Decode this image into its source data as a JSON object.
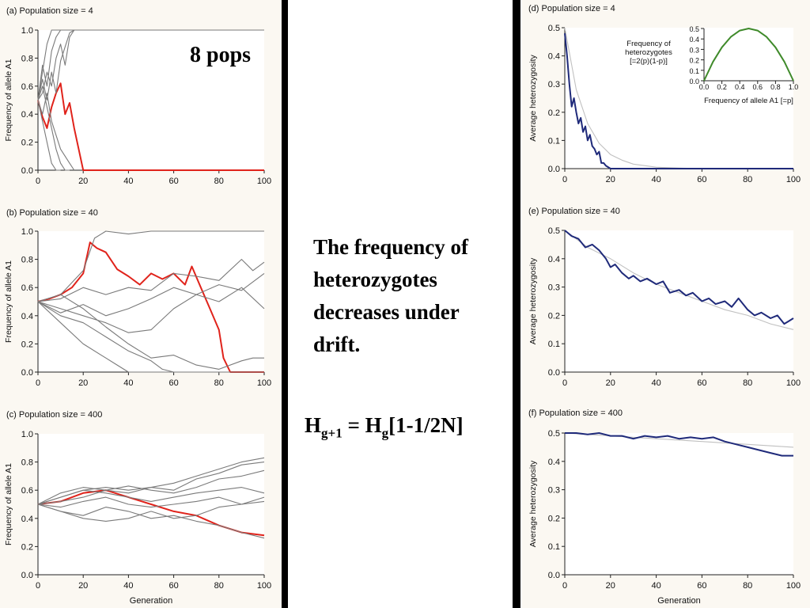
{
  "slide": {
    "pops_label": "8 pops",
    "message": "The frequency of heterozygotes decreases under drift.",
    "formula": {
      "H1": "H",
      "sub1": "g+1",
      "eq": " = H",
      "sub2": "g",
      "rest": "[1-1/2N]"
    }
  },
  "chart_data": [
    {
      "id": "a",
      "type": "line",
      "title": "(a) Population size = 4",
      "xlabel": "",
      "ylabel": "Frequency of allele A1",
      "xlim": [
        0,
        100
      ],
      "ylim": [
        0,
        1
      ],
      "xticks": [
        "0",
        "20",
        "40",
        "60",
        "80",
        "100"
      ],
      "yticks": [
        "0.0",
        "0.2",
        "0.4",
        "0.6",
        "0.8",
        "1.0"
      ],
      "series": [
        {
          "color": "#e0231b",
          "x": [
            0,
            2,
            4,
            6,
            8,
            10,
            12,
            14,
            16,
            18,
            20,
            100
          ],
          "y": [
            0.5,
            0.38,
            0.3,
            0.45,
            0.55,
            0.62,
            0.4,
            0.48,
            0.3,
            0.15,
            0,
            0
          ]
        },
        {
          "color": "#7a7a7a",
          "x": [
            0,
            2,
            4,
            6,
            8,
            10,
            12,
            14,
            100
          ],
          "y": [
            0.5,
            0.7,
            0.9,
            1.0,
            1.0,
            1.0,
            1.0,
            1.0,
            1.0
          ]
        },
        {
          "color": "#7a7a7a",
          "x": [
            0,
            2,
            4,
            6,
            8,
            10,
            12
          ],
          "y": [
            0.5,
            0.75,
            0.6,
            0.85,
            0.95,
            1.0,
            1.0
          ]
        },
        {
          "color": "#7a7a7a",
          "x": [
            0,
            2,
            4,
            6,
            8,
            10
          ],
          "y": [
            0.5,
            0.35,
            0.2,
            0.05,
            0,
            0
          ]
        },
        {
          "color": "#7a7a7a",
          "x": [
            0,
            2,
            4,
            6,
            8,
            10,
            12,
            14
          ],
          "y": [
            0.5,
            0.6,
            0.45,
            0.3,
            0.15,
            0.05,
            0,
            0
          ]
        },
        {
          "color": "#7a7a7a",
          "x": [
            0,
            2,
            4,
            6,
            8,
            10,
            12,
            14,
            16
          ],
          "y": [
            0.5,
            0.55,
            0.7,
            0.6,
            0.8,
            0.9,
            0.75,
            0.95,
            1.0
          ]
        },
        {
          "color": "#7a7a7a",
          "x": [
            0,
            2,
            4,
            6,
            8,
            10,
            12,
            14,
            16
          ],
          "y": [
            0.5,
            0.4,
            0.55,
            0.35,
            0.25,
            0.15,
            0.1,
            0.05,
            0
          ]
        },
        {
          "color": "#7a7a7a",
          "x": [
            0,
            2,
            4,
            6,
            8,
            10,
            12,
            14,
            16
          ],
          "y": [
            0.5,
            0.65,
            0.5,
            0.7,
            0.55,
            0.78,
            0.88,
            0.98,
            1.0
          ]
        }
      ]
    },
    {
      "id": "b",
      "type": "line",
      "title": "(b) Population size = 40",
      "xlabel": "",
      "ylabel": "Frequency of allele A1",
      "xlim": [
        0,
        100
      ],
      "ylim": [
        0,
        1
      ],
      "xticks": [
        "0",
        "20",
        "40",
        "60",
        "80",
        "100"
      ],
      "yticks": [
        "0.0",
        "0.2",
        "0.4",
        "0.6",
        "0.8",
        "1.0"
      ],
      "series": [
        {
          "color": "#e0231b",
          "x": [
            0,
            5,
            10,
            15,
            20,
            23,
            26,
            30,
            35,
            40,
            45,
            50,
            55,
            60,
            65,
            68,
            72,
            76,
            80,
            82,
            85,
            100
          ],
          "y": [
            0.5,
            0.52,
            0.55,
            0.6,
            0.7,
            0.92,
            0.88,
            0.85,
            0.73,
            0.68,
            0.62,
            0.7,
            0.66,
            0.7,
            0.62,
            0.75,
            0.6,
            0.45,
            0.3,
            0.1,
            0,
            0
          ]
        },
        {
          "color": "#7a7a7a",
          "x": [
            0,
            10,
            20,
            25,
            30,
            40,
            50,
            60,
            70,
            80,
            90,
            100
          ],
          "y": [
            0.5,
            0.55,
            0.72,
            0.95,
            1.0,
            0.98,
            1.0,
            1.0,
            1.0,
            1.0,
            1.0,
            1.0
          ]
        },
        {
          "color": "#7a7a7a",
          "x": [
            0,
            10,
            20,
            30,
            40,
            50,
            60,
            70,
            80,
            90,
            95,
            100
          ],
          "y": [
            0.5,
            0.52,
            0.6,
            0.55,
            0.6,
            0.58,
            0.7,
            0.68,
            0.65,
            0.8,
            0.72,
            0.78
          ]
        },
        {
          "color": "#7a7a7a",
          "x": [
            0,
            10,
            20,
            30,
            40,
            50,
            60,
            70,
            80,
            90,
            100
          ],
          "y": [
            0.5,
            0.42,
            0.48,
            0.4,
            0.45,
            0.52,
            0.6,
            0.55,
            0.62,
            0.58,
            0.7
          ]
        },
        {
          "color": "#7a7a7a",
          "x": [
            0,
            10,
            20,
            30,
            40,
            50,
            60,
            70,
            80,
            90,
            100
          ],
          "y": [
            0.5,
            0.45,
            0.4,
            0.35,
            0.28,
            0.3,
            0.45,
            0.55,
            0.5,
            0.6,
            0.45
          ]
        },
        {
          "color": "#7a7a7a",
          "x": [
            0,
            10,
            20,
            30,
            40,
            50,
            55,
            60,
            100
          ],
          "y": [
            0.5,
            0.4,
            0.35,
            0.25,
            0.15,
            0.08,
            0.02,
            0,
            0
          ]
        },
        {
          "color": "#7a7a7a",
          "x": [
            0,
            10,
            20,
            30,
            35,
            40,
            100
          ],
          "y": [
            0.5,
            0.35,
            0.2,
            0.1,
            0.05,
            0,
            0
          ]
        },
        {
          "color": "#7a7a7a",
          "x": [
            0,
            10,
            20,
            30,
            40,
            50,
            60,
            70,
            80,
            90,
            95,
            100
          ],
          "y": [
            0.5,
            0.55,
            0.45,
            0.32,
            0.2,
            0.1,
            0.12,
            0.05,
            0.02,
            0.08,
            0.1,
            0.1
          ]
        }
      ]
    },
    {
      "id": "c",
      "type": "line",
      "title": "(c) Population size = 400",
      "xlabel": "Generation",
      "ylabel": "Frequency of allele A1",
      "xlim": [
        0,
        100
      ],
      "ylim": [
        0,
        1
      ],
      "xticks": [
        "0",
        "20",
        "40",
        "60",
        "80",
        "100"
      ],
      "yticks": [
        "0.0",
        "0.2",
        "0.4",
        "0.6",
        "0.8",
        "1.0"
      ],
      "series": [
        {
          "color": "#e0231b",
          "x": [
            0,
            10,
            20,
            30,
            40,
            50,
            60,
            70,
            80,
            90,
            100
          ],
          "y": [
            0.5,
            0.52,
            0.58,
            0.6,
            0.55,
            0.5,
            0.45,
            0.42,
            0.35,
            0.3,
            0.28
          ]
        },
        {
          "color": "#7a7a7a",
          "x": [
            0,
            10,
            20,
            30,
            40,
            50,
            60,
            70,
            80,
            90,
            100
          ],
          "y": [
            0.5,
            0.55,
            0.6,
            0.62,
            0.6,
            0.62,
            0.65,
            0.7,
            0.75,
            0.8,
            0.83
          ]
        },
        {
          "color": "#7a7a7a",
          "x": [
            0,
            10,
            20,
            30,
            40,
            50,
            60,
            70,
            80,
            90,
            100
          ],
          "y": [
            0.5,
            0.58,
            0.62,
            0.6,
            0.58,
            0.62,
            0.6,
            0.68,
            0.72,
            0.78,
            0.8
          ]
        },
        {
          "color": "#7a7a7a",
          "x": [
            0,
            10,
            20,
            30,
            40,
            50,
            60,
            70,
            80,
            90,
            100
          ],
          "y": [
            0.5,
            0.52,
            0.55,
            0.6,
            0.63,
            0.6,
            0.58,
            0.62,
            0.68,
            0.7,
            0.74
          ]
        },
        {
          "color": "#7a7a7a",
          "x": [
            0,
            10,
            20,
            30,
            40,
            50,
            60,
            70,
            80,
            90,
            100
          ],
          "y": [
            0.5,
            0.55,
            0.6,
            0.58,
            0.55,
            0.52,
            0.55,
            0.58,
            0.6,
            0.62,
            0.58
          ]
        },
        {
          "color": "#7a7a7a",
          "x": [
            0,
            10,
            20,
            30,
            40,
            50,
            60,
            70,
            80,
            90,
            100
          ],
          "y": [
            0.5,
            0.48,
            0.52,
            0.55,
            0.5,
            0.48,
            0.5,
            0.52,
            0.55,
            0.5,
            0.52
          ]
        },
        {
          "color": "#7a7a7a",
          "x": [
            0,
            10,
            20,
            30,
            40,
            50,
            60,
            70,
            80,
            90,
            100
          ],
          "y": [
            0.5,
            0.45,
            0.42,
            0.48,
            0.45,
            0.4,
            0.42,
            0.38,
            0.35,
            0.3,
            0.26
          ]
        },
        {
          "color": "#7a7a7a",
          "x": [
            0,
            10,
            20,
            30,
            40,
            50,
            60,
            70,
            80,
            90,
            100
          ],
          "y": [
            0.5,
            0.45,
            0.4,
            0.38,
            0.4,
            0.45,
            0.4,
            0.42,
            0.48,
            0.5,
            0.55
          ]
        }
      ]
    },
    {
      "id": "d",
      "type": "line",
      "title": "(d) Population size = 4",
      "xlabel": "",
      "ylabel": "Average heterozygosity",
      "xlim": [
        0,
        100
      ],
      "ylim": [
        0,
        0.5
      ],
      "xticks": [
        "0",
        "20",
        "40",
        "60",
        "80",
        "100"
      ],
      "yticks": [
        "0.0",
        "0.1",
        "0.2",
        "0.3",
        "0.4",
        "0.5"
      ],
      "series": [
        {
          "color": "#c0c0c0",
          "x": [
            0,
            5,
            10,
            15,
            20,
            25,
            30,
            40,
            50,
            60,
            80,
            100
          ],
          "y": [
            0.5,
            0.28,
            0.16,
            0.09,
            0.05,
            0.03,
            0.016,
            0.005,
            0.002,
            0,
            0,
            0
          ]
        },
        {
          "color": "#1f2a7a",
          "x": [
            0,
            1,
            2,
            3,
            4,
            5,
            6,
            7,
            8,
            9,
            10,
            11,
            12,
            13,
            14,
            15,
            16,
            17,
            18,
            20,
            100
          ],
          "y": [
            0.48,
            0.4,
            0.3,
            0.22,
            0.25,
            0.2,
            0.16,
            0.18,
            0.13,
            0.15,
            0.1,
            0.12,
            0.08,
            0.07,
            0.05,
            0.06,
            0.02,
            0.02,
            0.01,
            0,
            0
          ]
        }
      ]
    },
    {
      "id": "d-inset",
      "type": "line",
      "title": "Frequency of heterozygotes [=2(p)(1-p)]",
      "xlabel": "Frequency of allele A1 [=p]",
      "ylabel": "",
      "xlim": [
        0,
        1
      ],
      "ylim": [
        0,
        0.5
      ],
      "xticks": [
        "0.0",
        "0.2",
        "0.4",
        "0.6",
        "0.8",
        "1.0"
      ],
      "yticks": [
        "0.0",
        "0.1",
        "0.2",
        "0.3",
        "0.4",
        "0.5"
      ],
      "series": [
        {
          "color": "#3f8a2a",
          "x": [
            0,
            0.1,
            0.2,
            0.3,
            0.4,
            0.5,
            0.6,
            0.7,
            0.8,
            0.9,
            1.0
          ],
          "y": [
            0,
            0.18,
            0.32,
            0.42,
            0.48,
            0.5,
            0.48,
            0.42,
            0.32,
            0.18,
            0
          ]
        }
      ]
    },
    {
      "id": "e",
      "type": "line",
      "title": "(e) Population size = 40",
      "xlabel": "",
      "ylabel": "Average heterozygosity",
      "xlim": [
        0,
        100
      ],
      "ylim": [
        0,
        0.5
      ],
      "xticks": [
        "0",
        "20",
        "40",
        "60",
        "80",
        "100"
      ],
      "yticks": [
        "0.0",
        "0.1",
        "0.2",
        "0.3",
        "0.4",
        "0.5"
      ],
      "series": [
        {
          "color": "#c0c0c0",
          "x": [
            0,
            10,
            20,
            30,
            40,
            50,
            60,
            70,
            80,
            90,
            100
          ],
          "y": [
            0.5,
            0.44,
            0.4,
            0.35,
            0.31,
            0.28,
            0.25,
            0.22,
            0.2,
            0.17,
            0.15
          ]
        },
        {
          "color": "#1f2a7a",
          "x": [
            0,
            3,
            6,
            9,
            12,
            15,
            18,
            20,
            22,
            25,
            28,
            30,
            33,
            36,
            40,
            43,
            46,
            50,
            53,
            56,
            60,
            63,
            66,
            70,
            73,
            76,
            80,
            83,
            86,
            90,
            93,
            96,
            98,
            100
          ],
          "y": [
            0.5,
            0.48,
            0.47,
            0.44,
            0.45,
            0.43,
            0.4,
            0.37,
            0.38,
            0.35,
            0.33,
            0.34,
            0.32,
            0.33,
            0.31,
            0.32,
            0.28,
            0.29,
            0.27,
            0.28,
            0.25,
            0.26,
            0.24,
            0.25,
            0.23,
            0.26,
            0.22,
            0.2,
            0.21,
            0.19,
            0.2,
            0.17,
            0.18,
            0.19
          ]
        }
      ]
    },
    {
      "id": "f",
      "type": "line",
      "title": "(f) Population size = 400",
      "xlabel": "Generation",
      "ylabel": "Average heterozygosity",
      "xlim": [
        0,
        100
      ],
      "ylim": [
        0,
        0.5
      ],
      "xticks": [
        "0",
        "20",
        "40",
        "60",
        "80",
        "100"
      ],
      "yticks": [
        "0.0",
        "0.1",
        "0.2",
        "0.3",
        "0.4",
        "0.5"
      ],
      "series": [
        {
          "color": "#c0c0c0",
          "x": [
            0,
            20,
            40,
            60,
            80,
            100
          ],
          "y": [
            0.5,
            0.49,
            0.48,
            0.47,
            0.46,
            0.45
          ]
        },
        {
          "color": "#1f2a7a",
          "x": [
            0,
            5,
            10,
            15,
            20,
            25,
            30,
            35,
            40,
            45,
            50,
            55,
            60,
            65,
            70,
            75,
            80,
            85,
            90,
            95,
            100
          ],
          "y": [
            0.5,
            0.5,
            0.495,
            0.5,
            0.49,
            0.49,
            0.48,
            0.49,
            0.485,
            0.49,
            0.48,
            0.485,
            0.48,
            0.485,
            0.47,
            0.46,
            0.45,
            0.44,
            0.43,
            0.42,
            0.42
          ]
        }
      ]
    }
  ]
}
